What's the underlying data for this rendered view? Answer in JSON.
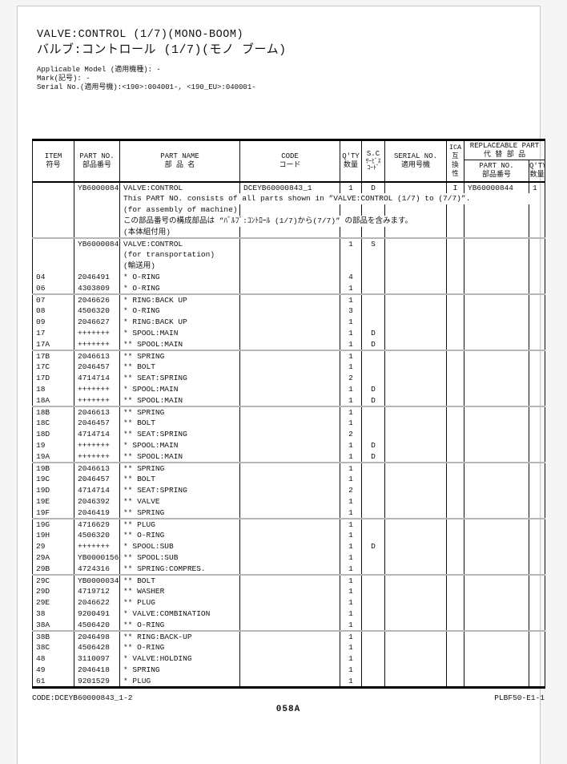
{
  "header": {
    "title_en": "VALVE:CONTROL (1/7)(MONO-BOOM)",
    "title_ja": "バルブ:コントロール (1/7)(モノ ブーム)",
    "meta": [
      "Applicable Model (適用機種): -",
      "Mark(記号): -",
      "Serial No.(適用号機):<190>:004001-, <190_EU>:040001-"
    ]
  },
  "table": {
    "headers": {
      "item": [
        "ITEM",
        "符号"
      ],
      "part_no": [
        "PART NO.",
        "部品番号"
      ],
      "part_name": [
        "PART NAME",
        "部 品 名"
      ],
      "code": [
        "CODE",
        "コード"
      ],
      "qty": [
        "Q'TY",
        "数量"
      ],
      "sc": [
        "S.C",
        "ｻｰﾋﾞｽ",
        "ｺｰﾄﾞ"
      ],
      "serial": [
        "SERIAL NO.",
        "適用号機"
      ],
      "ica": [
        "ICA",
        "互",
        "換",
        "性"
      ],
      "replaceable": [
        "REPLACEABLE PART",
        "代 替 部 品"
      ],
      "rep_part_no": [
        "PART NO.",
        "部品番号"
      ],
      "rep_qty": [
        "Q'TY",
        "数量"
      ]
    },
    "rows": [
      {
        "item": "",
        "pno": "YB60000843",
        "name": "VALVE:CONTROL",
        "code": "DCEYB60000843_1",
        "qty": "1",
        "sc": "D",
        "serial": "",
        "ica": "I",
        "rpno": "YB60000844",
        "rqty": "1"
      },
      {
        "item": "",
        "pno": "",
        "name": "This PART NO. consists of all parts shown in ”VALVE:CONTROL (1/7) to (7/7)”.",
        "span": 8
      },
      {
        "item": "",
        "pno": "",
        "name": "(for assembly of machine)",
        "code": "",
        "qty": "",
        "sc": "",
        "serial": "",
        "ica": "",
        "rpno": "",
        "rqty": ""
      },
      {
        "item": "",
        "pno": "",
        "name": "この部品番号の構成部品は ”ﾊﾞﾙﾌﾞ:ｺﾝﾄﾛｰﾙ (1/7)から(7/7)” の部品を含みます。",
        "span": 5,
        "ica": "",
        "rpno": "",
        "rqty": ""
      },
      {
        "item": "",
        "pno": "",
        "name": "(本体組付用)",
        "code": "",
        "qty": "",
        "sc": "",
        "serial": "",
        "ica": "",
        "rpno": "",
        "rqty": ""
      },
      {
        "item": "",
        "pno": "YB60000844",
        "name": "VALVE:CONTROL",
        "code": "",
        "qty": "1",
        "sc": "S",
        "serial": "",
        "ica": "",
        "rpno": "",
        "rqty": "",
        "sep": true
      },
      {
        "item": "",
        "pno": "",
        "name": "(for transportation)",
        "code": "",
        "qty": "",
        "sc": "",
        "serial": "",
        "ica": "",
        "rpno": "",
        "rqty": ""
      },
      {
        "item": "",
        "pno": "",
        "name": "(輸送用)",
        "code": "",
        "qty": "",
        "sc": "",
        "serial": "",
        "ica": "",
        "rpno": "",
        "rqty": ""
      },
      {
        "item": "04",
        "pno": "2046491",
        "name": "* O-RING",
        "code": "",
        "qty": "4",
        "sc": "",
        "serial": "",
        "ica": "",
        "rpno": "",
        "rqty": ""
      },
      {
        "item": "06",
        "pno": "4303809",
        "name": "* O-RING",
        "code": "",
        "qty": "1",
        "sc": "",
        "serial": "",
        "ica": "",
        "rpno": "",
        "rqty": ""
      },
      {
        "item": "07",
        "pno": "2046626",
        "name": "* RING:BACK UP",
        "code": "",
        "qty": "1",
        "sc": "",
        "serial": "",
        "ica": "",
        "rpno": "",
        "rqty": "",
        "sep": true
      },
      {
        "item": "08",
        "pno": "4506320",
        "name": "* O-RING",
        "code": "",
        "qty": "3",
        "sc": "",
        "serial": "",
        "ica": "",
        "rpno": "",
        "rqty": ""
      },
      {
        "item": "09",
        "pno": "2046627",
        "name": "* RING:BACK UP",
        "code": "",
        "qty": "1",
        "sc": "",
        "serial": "",
        "ica": "",
        "rpno": "",
        "rqty": ""
      },
      {
        "item": "17",
        "pno": "+++++++",
        "name": "* SPOOL:MAIN",
        "code": "",
        "qty": "1",
        "sc": "D",
        "serial": "",
        "ica": "",
        "rpno": "",
        "rqty": ""
      },
      {
        "item": "17A",
        "pno": "+++++++",
        "name": "** SPOOL:MAIN",
        "code": "",
        "qty": "1",
        "sc": "D",
        "serial": "",
        "ica": "",
        "rpno": "",
        "rqty": ""
      },
      {
        "item": "17B",
        "pno": "2046613",
        "name": "** SPRING",
        "code": "",
        "qty": "1",
        "sc": "",
        "serial": "",
        "ica": "",
        "rpno": "",
        "rqty": "",
        "sep": true
      },
      {
        "item": "17C",
        "pno": "2046457",
        "name": "** BOLT",
        "code": "",
        "qty": "1",
        "sc": "",
        "serial": "",
        "ica": "",
        "rpno": "",
        "rqty": ""
      },
      {
        "item": "17D",
        "pno": "4714714",
        "name": "** SEAT:SPRING",
        "code": "",
        "qty": "2",
        "sc": "",
        "serial": "",
        "ica": "",
        "rpno": "",
        "rqty": ""
      },
      {
        "item": "18",
        "pno": "+++++++",
        "name": "* SPOOL:MAIN",
        "code": "",
        "qty": "1",
        "sc": "D",
        "serial": "",
        "ica": "",
        "rpno": "",
        "rqty": ""
      },
      {
        "item": "18A",
        "pno": "+++++++",
        "name": "** SPOOL:MAIN",
        "code": "",
        "qty": "1",
        "sc": "D",
        "serial": "",
        "ica": "",
        "rpno": "",
        "rqty": ""
      },
      {
        "item": "18B",
        "pno": "2046613",
        "name": "** SPRING",
        "code": "",
        "qty": "1",
        "sc": "",
        "serial": "",
        "ica": "",
        "rpno": "",
        "rqty": "",
        "sep": true
      },
      {
        "item": "18C",
        "pno": "2046457",
        "name": "** BOLT",
        "code": "",
        "qty": "1",
        "sc": "",
        "serial": "",
        "ica": "",
        "rpno": "",
        "rqty": ""
      },
      {
        "item": "18D",
        "pno": "4714714",
        "name": "** SEAT:SPRING",
        "code": "",
        "qty": "2",
        "sc": "",
        "serial": "",
        "ica": "",
        "rpno": "",
        "rqty": ""
      },
      {
        "item": "19",
        "pno": "+++++++",
        "name": "* SPOOL:MAIN",
        "code": "",
        "qty": "1",
        "sc": "D",
        "serial": "",
        "ica": "",
        "rpno": "",
        "rqty": ""
      },
      {
        "item": "19A",
        "pno": "+++++++",
        "name": "** SPOOL:MAIN",
        "code": "",
        "qty": "1",
        "sc": "D",
        "serial": "",
        "ica": "",
        "rpno": "",
        "rqty": ""
      },
      {
        "item": "19B",
        "pno": "2046613",
        "name": "** SPRING",
        "code": "",
        "qty": "1",
        "sc": "",
        "serial": "",
        "ica": "",
        "rpno": "",
        "rqty": "",
        "sep": true
      },
      {
        "item": "19C",
        "pno": "2046457",
        "name": "** BOLT",
        "code": "",
        "qty": "1",
        "sc": "",
        "serial": "",
        "ica": "",
        "rpno": "",
        "rqty": ""
      },
      {
        "item": "19D",
        "pno": "4714714",
        "name": "** SEAT:SPRING",
        "code": "",
        "qty": "2",
        "sc": "",
        "serial": "",
        "ica": "",
        "rpno": "",
        "rqty": ""
      },
      {
        "item": "19E",
        "pno": "2046392",
        "name": "** VALVE",
        "code": "",
        "qty": "1",
        "sc": "",
        "serial": "",
        "ica": "",
        "rpno": "",
        "rqty": ""
      },
      {
        "item": "19F",
        "pno": "2046419",
        "name": "** SPRING",
        "code": "",
        "qty": "1",
        "sc": "",
        "serial": "",
        "ica": "",
        "rpno": "",
        "rqty": ""
      },
      {
        "item": "19G",
        "pno": "4716629",
        "name": "** PLUG",
        "code": "",
        "qty": "1",
        "sc": "",
        "serial": "",
        "ica": "",
        "rpno": "",
        "rqty": "",
        "sep": true
      },
      {
        "item": "19H",
        "pno": "4506320",
        "name": "** O-RING",
        "code": "",
        "qty": "1",
        "sc": "",
        "serial": "",
        "ica": "",
        "rpno": "",
        "rqty": ""
      },
      {
        "item": "29",
        "pno": "+++++++",
        "name": "* SPOOL:SUB",
        "code": "",
        "qty": "1",
        "sc": "D",
        "serial": "",
        "ica": "",
        "rpno": "",
        "rqty": ""
      },
      {
        "item": "29A",
        "pno": "YB00001567",
        "name": "** SPOOL:SUB",
        "code": "",
        "qty": "1",
        "sc": "",
        "serial": "",
        "ica": "",
        "rpno": "",
        "rqty": ""
      },
      {
        "item": "29B",
        "pno": "4724316",
        "name": "** SPRING:COMPRES.",
        "code": "",
        "qty": "1",
        "sc": "",
        "serial": "",
        "ica": "",
        "rpno": "",
        "rqty": ""
      },
      {
        "item": "29C",
        "pno": "YB00000344",
        "name": "** BOLT",
        "code": "",
        "qty": "1",
        "sc": "",
        "serial": "",
        "ica": "",
        "rpno": "",
        "rqty": "",
        "sep": true
      },
      {
        "item": "29D",
        "pno": "4719712",
        "name": "** WASHER",
        "code": "",
        "qty": "1",
        "sc": "",
        "serial": "",
        "ica": "",
        "rpno": "",
        "rqty": ""
      },
      {
        "item": "29E",
        "pno": "2046622",
        "name": "** PLUG",
        "code": "",
        "qty": "1",
        "sc": "",
        "serial": "",
        "ica": "",
        "rpno": "",
        "rqty": ""
      },
      {
        "item": "38",
        "pno": "9200491",
        "name": "* VALVE:COMBINATION",
        "code": "",
        "qty": "1",
        "sc": "",
        "serial": "",
        "ica": "",
        "rpno": "",
        "rqty": ""
      },
      {
        "item": "38A",
        "pno": "4506420",
        "name": "** O-RING",
        "code": "",
        "qty": "1",
        "sc": "",
        "serial": "",
        "ica": "",
        "rpno": "",
        "rqty": ""
      },
      {
        "item": "38B",
        "pno": "2046498",
        "name": "** RING:BACK-UP",
        "code": "",
        "qty": "1",
        "sc": "",
        "serial": "",
        "ica": "",
        "rpno": "",
        "rqty": "",
        "sep": true
      },
      {
        "item": "38C",
        "pno": "4506428",
        "name": "** O-RING",
        "code": "",
        "qty": "1",
        "sc": "",
        "serial": "",
        "ica": "",
        "rpno": "",
        "rqty": ""
      },
      {
        "item": "48",
        "pno": "3110097",
        "name": "* VALVE:HOLDING",
        "code": "",
        "qty": "1",
        "sc": "",
        "serial": "",
        "ica": "",
        "rpno": "",
        "rqty": ""
      },
      {
        "item": "49",
        "pno": "2046418",
        "name": "* SPRING",
        "code": "",
        "qty": "1",
        "sc": "",
        "serial": "",
        "ica": "",
        "rpno": "",
        "rqty": ""
      },
      {
        "item": "61",
        "pno": "9201529",
        "name": "* PLUG",
        "code": "",
        "qty": "1",
        "sc": "",
        "serial": "",
        "ica": "",
        "rpno": "",
        "rqty": ""
      }
    ]
  },
  "footer": {
    "code": "CODE:DCEYB60000843_1-2",
    "form_no": "PLBF50-E1-1",
    "page_no": "058A"
  }
}
